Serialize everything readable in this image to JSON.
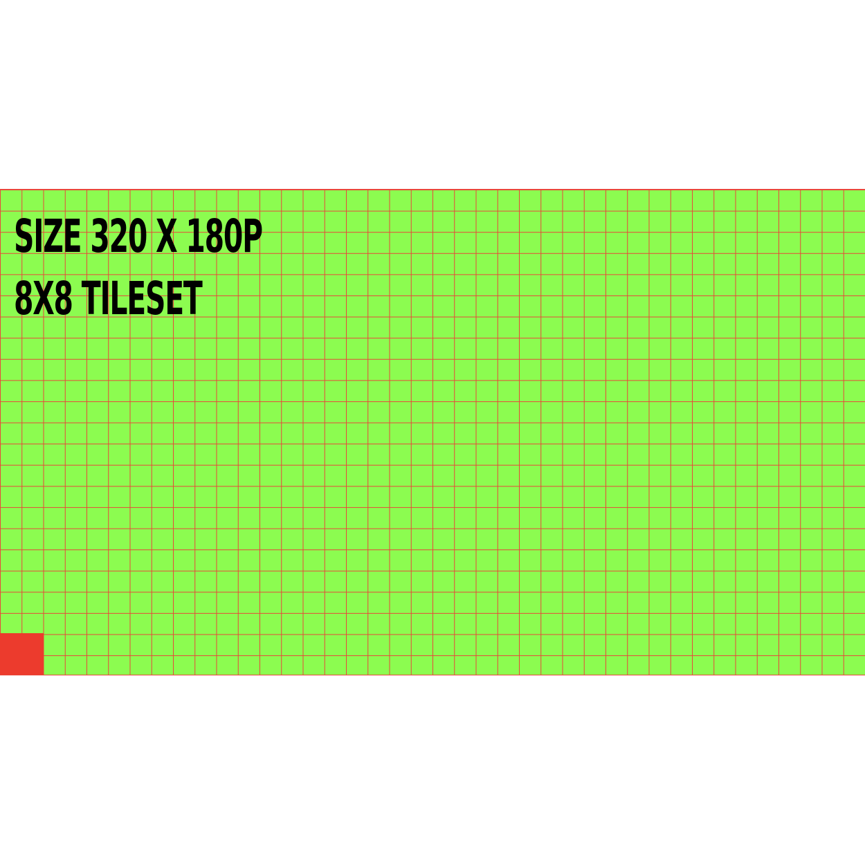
{
  "colors": {
    "background": "#ffffff",
    "tile_fill": "#8cfc50",
    "grid_line": "#e8473a",
    "selected_tile": "#ec3b2d",
    "text": "#000000"
  },
  "overlay": {
    "line1": "SIZE 320 X 180P",
    "line2": "8X8 TILESET"
  }
}
